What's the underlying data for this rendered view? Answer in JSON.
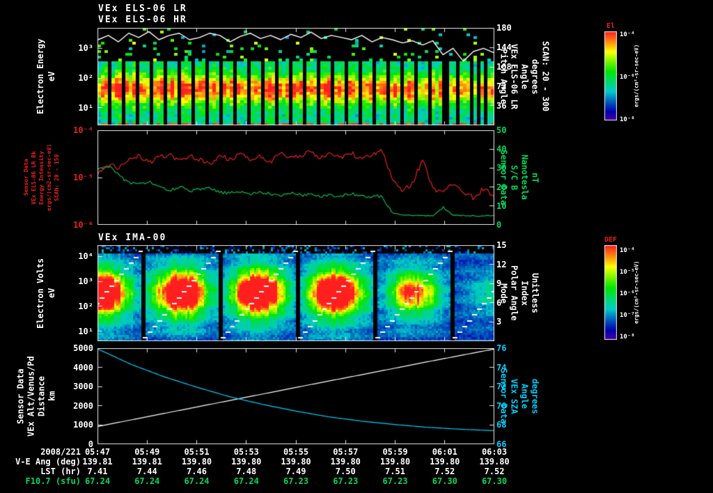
{
  "page": {
    "background": "#000000"
  },
  "titles": {
    "els_lr": "VEx ELS-06 LR",
    "els_hr": "VEx ELS-06 HR",
    "ima": "VEx IMA-00"
  },
  "colors": {
    "white": "#ffffff",
    "red": "#e82020",
    "green": "#00d95f",
    "cyan": "#00cfff",
    "frame": "#e6e6e6",
    "background": "#000000"
  },
  "chart_data": [
    {
      "id": "els_energy_spectrogram",
      "type": "heatmap",
      "title": "VEx ELS-06 LR / VEx ELS-06 HR",
      "left_axis": {
        "label_lines": [
          "Electron Energy",
          "eV"
        ],
        "color": "#ffffff",
        "scale": "log",
        "range": [
          3.69,
          0.41
        ],
        "ticks": [
          {
            "label": "10³",
            "value": 3
          },
          {
            "label": "10²",
            "value": 2
          },
          {
            "label": "10¹",
            "value": 1
          }
        ]
      },
      "right_axis": {
        "label_lines": [
          "Pitch Angle",
          "VEx ELS-06 LR",
          "Angle",
          "degrees",
          "SCAN: 20 - 300"
        ],
        "color": "#ffffff",
        "scale": "linear",
        "range": [
          180,
          0
        ],
        "ticks": [
          {
            "label": "180",
            "value": 180
          },
          {
            "label": "144",
            "value": 144
          },
          {
            "label": "108",
            "value": 108
          },
          {
            "label": "72",
            "value": 72
          },
          {
            "label": "36",
            "value": 36
          }
        ]
      },
      "colorbar": {
        "label": "El",
        "units": "ergs/(cm²-sr-sec-eV)",
        "scale": "log",
        "range": [
          -3.9,
          -8.1
        ],
        "ticks": [
          {
            "label": "10⁻⁴",
            "value": -4
          },
          {
            "label": "10⁻⁶",
            "value": -6
          },
          {
            "label": "10⁻⁸",
            "value": -8
          }
        ]
      },
      "heatmap_features": {
        "intense_band_log10_eV": [
          1.2,
          2.1
        ],
        "diffuse_fill_below_log10_eV": 2.55,
        "speckle_above_log10_eV": 2.55,
        "data_gap_stripes": "regular vertical black gaps every ~20 px",
        "weaker_after_frac": 0.78
      },
      "overlay_series": {
        "name": "pitch-angle-trace",
        "axis": "right",
        "color": "#ffffff",
        "units": "degrees",
        "values": [
          158,
          166,
          154,
          170,
          162,
          173,
          158,
          166,
          170,
          158,
          162,
          170,
          166,
          154,
          164,
          170,
          160,
          166,
          158,
          168,
          162,
          172,
          160,
          166,
          162,
          158,
          166,
          154,
          162,
          158,
          152,
          156,
          148,
          156,
          130,
          142,
          118,
          136,
          142,
          134
        ]
      }
    },
    {
      "id": "els_intensity_and_magnetic_field",
      "type": "line",
      "left_axis": {
        "label_lines": [
          "Sensor Data",
          "VEx ELS-06 LR Bk",
          "Energy Intensity",
          "ergs/(cm2-sr-sec-eV)",
          "SCAN: 20 - 150"
        ],
        "color": "#e82020",
        "scale": "log",
        "range": [
          -4,
          -6
        ],
        "ticks": [
          {
            "label": "10⁻⁴",
            "value": -4
          },
          {
            "label": "10⁻⁵",
            "value": -5
          },
          {
            "label": "10⁻⁶",
            "value": -6
          }
        ]
      },
      "right_axis": {
        "label_lines": [
          "Sensor Data",
          "S/C B",
          "Nanotesla",
          "nT"
        ],
        "color": "#00d95f",
        "scale": "linear",
        "range": [
          50,
          0
        ],
        "ticks": [
          {
            "label": "50",
            "value": 50
          },
          {
            "label": "40",
            "value": 40
          },
          {
            "label": "30",
            "value": 30
          },
          {
            "label": "20",
            "value": 20
          },
          {
            "label": "10",
            "value": 10
          },
          {
            "label": "0",
            "value": 0
          }
        ]
      },
      "series": [
        {
          "name": "els-bk-energy-intensity",
          "axis": "left",
          "color": "#e82020",
          "units": "log10 ergs/(cm2-sr-sec-eV)",
          "values": [
            -4.92,
            -4.72,
            -4.8,
            -4.62,
            -4.55,
            -4.7,
            -4.58,
            -4.5,
            -4.66,
            -4.56,
            -4.62,
            -4.72,
            -4.55,
            -4.63,
            -4.5,
            -4.6,
            -4.55,
            -4.66,
            -4.5,
            -4.58,
            -4.52,
            -4.47,
            -4.6,
            -4.5,
            -4.56,
            -4.5,
            -4.58,
            -4.52,
            -4.45,
            -5.02,
            -5.28,
            -5.12,
            -4.62,
            -5.25,
            -5.35,
            -5.15,
            -5.3,
            -5.44,
            -5.25,
            -5.38
          ]
        },
        {
          "name": "sc-magnetic-field",
          "axis": "right",
          "color": "#00c050",
          "units": "nT",
          "values": [
            29,
            31,
            26.5,
            22,
            21,
            23,
            19.5,
            18,
            20,
            17.5,
            18.5,
            19,
            17,
            16.5,
            17.5,
            16,
            17,
            16.2,
            15.6,
            16.4,
            15.5,
            16,
            15,
            15.6,
            15,
            16,
            15,
            14.6,
            15,
            6,
            5,
            4.8,
            4.6,
            4.5,
            9,
            4.8,
            4.6,
            4.5,
            4.4,
            4.5
          ]
        }
      ]
    },
    {
      "id": "ima_ion_spectrogram",
      "type": "heatmap",
      "title": "VEx IMA-00",
      "left_axis": {
        "label_lines": [
          "Electron Volts",
          "eV"
        ],
        "color": "#ffffff",
        "scale": "log",
        "range": [
          4.46,
          0.6
        ],
        "ticks": [
          {
            "label": "10⁴",
            "value": 4
          },
          {
            "label": "10³",
            "value": 3
          },
          {
            "label": "10²",
            "value": 2
          },
          {
            "label": "10¹",
            "value": 1
          }
        ]
      },
      "right_axis": {
        "label_lines": [
          "Mode",
          "Polar Angle",
          "Index",
          "Unitless"
        ],
        "color": "#ffffff",
        "scale": "linear",
        "range": [
          15,
          0
        ],
        "ticks": [
          {
            "label": "15",
            "value": 15
          },
          {
            "label": "12",
            "value": 12
          },
          {
            "label": "9",
            "value": 9
          },
          {
            "label": "6",
            "value": 6
          },
          {
            "label": "3",
            "value": 3
          }
        ]
      },
      "colorbar": {
        "label": "DEF",
        "units": "ergs/(cm²-sr-sec-eV)",
        "scale": "log",
        "range": [
          -3.8,
          -8.2
        ],
        "ticks": [
          {
            "label": "10⁻⁴",
            "value": -4
          },
          {
            "label": "10⁻⁵",
            "value": -5
          },
          {
            "label": "10⁻⁶",
            "value": -6
          },
          {
            "label": "10⁻⁷",
            "value": -7
          },
          {
            "label": "10⁻⁸",
            "value": -8
          }
        ]
      },
      "heatmap_features": {
        "cycle_width_frac": 0.195,
        "first_boundary_frac": 0.114,
        "segment_intensity": [
          0.9,
          1,
          1,
          1,
          0.55,
          0.15
        ],
        "blob_center_log10_eV": 2.55,
        "sawtooth_overlay": "white stair-step polar-angle ramp 0 to 15 each cycle"
      }
    },
    {
      "id": "trajectory",
      "type": "line",
      "left_axis": {
        "label_lines": [
          "Sensor Data",
          "VEx Alt/Venus/Pd",
          "Distance",
          "km"
        ],
        "color": "#ffffff",
        "scale": "linear",
        "range": [
          5000,
          0
        ],
        "ticks": [
          {
            "label": "5000",
            "value": 5000
          },
          {
            "label": "4000",
            "value": 4000
          },
          {
            "label": "3000",
            "value": 3000
          },
          {
            "label": "2000",
            "value": 2000
          },
          {
            "label": "1000",
            "value": 1000
          },
          {
            "label": "0",
            "value": 0
          }
        ]
      },
      "right_axis": {
        "label_lines": [
          "Sensor Data",
          "VEx SZA",
          "Angle",
          "degrees"
        ],
        "color": "#00cfff",
        "scale": "linear",
        "range": [
          76,
          66
        ],
        "ticks": [
          {
            "label": "76",
            "value": 76
          },
          {
            "label": "74",
            "value": 74
          },
          {
            "label": "72",
            "value": 72
          },
          {
            "label": "70",
            "value": 70
          },
          {
            "label": "68",
            "value": 68
          },
          {
            "label": "66",
            "value": 66
          }
        ]
      },
      "series": [
        {
          "name": "vex-altitude",
          "axis": "left",
          "color": "#ffffff",
          "units": "km",
          "values": [
            900,
            1240,
            1580,
            1920,
            2260,
            2600,
            2940,
            3280,
            3610,
            3950,
            4290,
            4620,
            4950
          ]
        },
        {
          "name": "vex-sza",
          "axis": "right",
          "color": "#00cfff",
          "units": "degrees",
          "values": [
            75.9,
            74.3,
            73.0,
            71.9,
            70.9,
            70.1,
            69.4,
            68.8,
            68.35,
            68.0,
            67.7,
            67.5,
            67.35
          ]
        }
      ]
    }
  ],
  "time_axis": {
    "date": "2008/221",
    "ticks": [
      "05:47",
      "05:49",
      "05:51",
      "05:53",
      "05:55",
      "05:57",
      "05:59",
      "06:01",
      "06:03"
    ]
  },
  "info_rows": [
    {
      "label": "V-E Ang (deg)",
      "color": "#ffffff",
      "values": [
        "139.81",
        "139.81",
        "139.80",
        "139.80",
        "139.80",
        "139.80",
        "139.80",
        "139.80",
        "139.80"
      ]
    },
    {
      "label": "LST (hr)",
      "color": "#ffffff",
      "values": [
        "7.41",
        "7.44",
        "7.46",
        "7.48",
        "7.49",
        "7.50",
        "7.51",
        "7.52",
        "7.52"
      ]
    },
    {
      "label": "F10.7 (sfu)",
      "color": "#00d95f",
      "values": [
        "67.24",
        "67.24",
        "67.24",
        "67.24",
        "67.23",
        "67.23",
        "67.23",
        "67.30",
        "67.30"
      ]
    }
  ]
}
